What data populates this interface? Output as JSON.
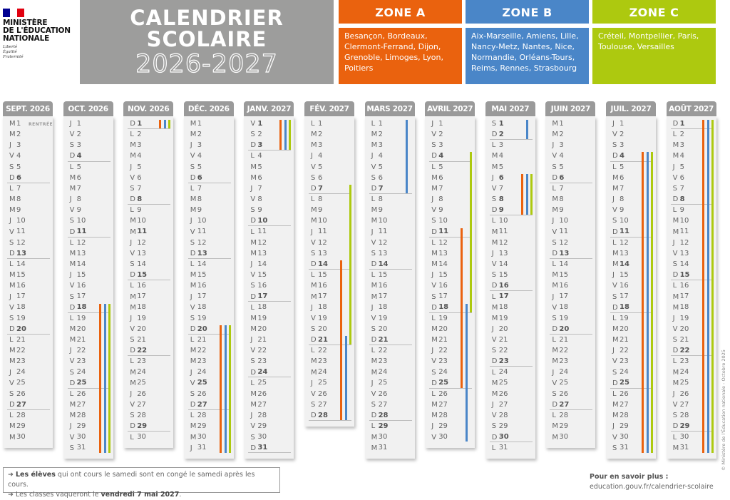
{
  "ministry": {
    "line1": "MINISTÈRE",
    "line2": "DE L'ÉDUCATION",
    "line3": "NATIONALE",
    "motto": [
      "Liberté",
      "Égalité",
      "Fraternité"
    ]
  },
  "title": {
    "line1": "CALENDRIER",
    "line2": "SCOLAIRE",
    "line3": "2026-2027"
  },
  "colors": {
    "A": "#ea620e",
    "B": "#4a86c8",
    "C": "#adc90f"
  },
  "zones": [
    {
      "id": "A",
      "title": "ZONE A",
      "text": "Besançon, Bordeaux, Clermont-Ferrand, Dijon, Grenoble, Limoges, Lyon, Poitiers"
    },
    {
      "id": "B",
      "title": "ZONE B",
      "text": "Aix-Marseille, Amiens, Lille, Nancy-Metz, Nantes, Nice, Normandie, Orléans-Tours, Reims, Rennes, Strasbourg"
    },
    {
      "id": "C",
      "title": "ZONE C",
      "text": "Créteil, Montpellier, Paris, Toulouse, Versailles"
    }
  ],
  "months": [
    {
      "label": "SEPT. 2026",
      "letters": "MMJVSDLMMJVSDLMMJVSDLMMJVSDLMM",
      "bold": [],
      "notes": {
        "1": "RENTRÉE"
      },
      "vac": []
    },
    {
      "label": "OCT. 2026",
      "letters": "JVSDLMMJVSDLMMJVSDLMMJVSDLMMJVS",
      "bold": [],
      "vac": [
        [
          "A",
          18,
          31
        ],
        [
          "B",
          18,
          31
        ],
        [
          "C",
          18,
          31
        ]
      ]
    },
    {
      "label": "NOV. 2026",
      "letters": "DLMMJVSDLMMJVSDLMMJVSDLMMJVSDL",
      "bold": [
        11
      ],
      "vac": [
        [
          "A",
          1,
          1
        ],
        [
          "B",
          1,
          1
        ],
        [
          "C",
          1,
          1
        ]
      ]
    },
    {
      "label": "DÉC. 2026",
      "letters": "MMJVSDLMMJVSDLMMJVSDLMMJVSDLMMJ",
      "bold": [
        25
      ],
      "vac": [
        [
          "A",
          20,
          31
        ],
        [
          "B",
          20,
          31
        ],
        [
          "C",
          20,
          31
        ]
      ]
    },
    {
      "label": "JANV. 2027",
      "letters": "VSDLMMJVSDLMMJVSDLMMJVSDLMMJVSD",
      "bold": [
        1
      ],
      "vac": [
        [
          "A",
          1,
          3
        ],
        [
          "B",
          1,
          3
        ],
        [
          "C",
          1,
          3
        ]
      ]
    },
    {
      "label": "FÉV. 2027",
      "letters": "LMMJVSDLMMJVSDLMMJVSDLMMJVSD",
      "bold": [],
      "vac": [
        [
          "C",
          7,
          21
        ],
        [
          "A",
          14,
          28
        ],
        [
          "B",
          21,
          28
        ]
      ]
    },
    {
      "label": "MARS 2027",
      "letters": "LMMJVSDLMMJVSDLMMJVSDLMMJVSDLMM",
      "bold": [
        29
      ],
      "vac": [
        [
          "B",
          1,
          7
        ]
      ]
    },
    {
      "label": "AVRIL 2027",
      "letters": "JVSDLMMJVSDLMMJVSDLMMJVSDLMMJV",
      "bold": [],
      "vac": [
        [
          "C",
          4,
          18
        ],
        [
          "A",
          11,
          25
        ],
        [
          "B",
          18,
          30
        ]
      ]
    },
    {
      "label": "MAI 2027",
      "letters": "SDLMMJVSDLMMJVSDLMMJVSDLMMJVSDL",
      "bold": [
        1,
        6,
        8,
        17
      ],
      "vac": [
        [
          "B",
          1,
          2
        ],
        [
          "A",
          6,
          9
        ],
        [
          "B",
          6,
          9
        ],
        [
          "C",
          6,
          9
        ]
      ]
    },
    {
      "label": "JUIN 2027",
      "letters": "MMJVSDLMMJVSDLMMJVSDLMMJVSDLMM",
      "bold": [],
      "vac": []
    },
    {
      "label": "JUIL. 2027",
      "letters": "JVSDLMMJVSDLMMJVSDLMMJVSDLMMJVS",
      "bold": [
        14
      ],
      "vac": [
        [
          "A",
          4,
          31
        ],
        [
          "B",
          4,
          31
        ],
        [
          "C",
          4,
          31
        ]
      ]
    },
    {
      "label": "AOÛT 2027",
      "letters": "DLMMJVSDLMMJVSDLMMJVSDLMMJVSDLM",
      "bold": [
        15
      ],
      "vac": [
        [
          "A",
          1,
          31
        ],
        [
          "B",
          1,
          31
        ],
        [
          "C",
          1,
          31
        ]
      ]
    }
  ],
  "footer": {
    "arrow": "➜",
    "n1_bold": "Les élèves",
    "n1_rest": " qui ont cours le samedi sont en congé le samedi après les cours.",
    "n2_start": "Les classes vaqueront le ",
    "n2_bold": "vendredi 7 mai 2027",
    "n2_end": "."
  },
  "more": {
    "label": "Pour en savoir plus :",
    "url": "education.gouv.fr/calendrier-scolaire"
  },
  "copyright": "© Ministère de l'Éducation nationale - Octobre 2025"
}
